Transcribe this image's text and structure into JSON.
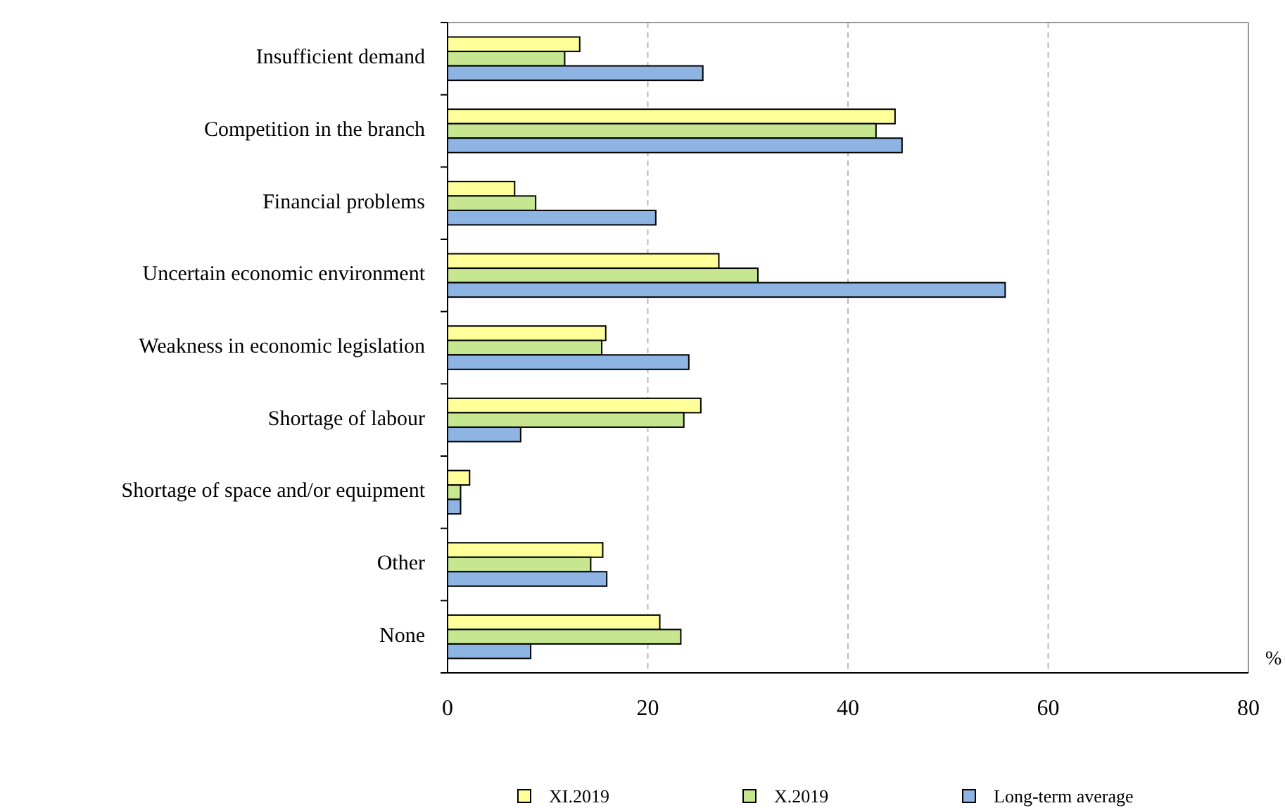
{
  "chart_data": {
    "type": "bar",
    "orientation": "horizontal",
    "xlabel": "%",
    "categories": [
      "Insufficient demand",
      "Competition in the branch",
      "Financial problems",
      "Uncertain economic environment",
      "Weakness in economic legislation",
      "Shortage of labour",
      "Shortage of space and/or equipment",
      "Other",
      "None"
    ],
    "series": [
      {
        "name": "XI.2019",
        "color": "#ffff99",
        "values": [
          13.2,
          44.7,
          6.7,
          27.1,
          15.8,
          25.3,
          2.2,
          15.5,
          21.2
        ]
      },
      {
        "name": "X.2019",
        "color": "#c6e690",
        "values": [
          11.7,
          42.8,
          8.8,
          31.0,
          15.4,
          23.6,
          1.3,
          14.3,
          23.3
        ]
      },
      {
        "name": "Long-term average",
        "color": "#8db4e2",
        "values": [
          25.5,
          45.4,
          20.8,
          55.7,
          24.1,
          7.3,
          1.3,
          15.9,
          8.3
        ]
      }
    ],
    "xlim": [
      0,
      80
    ],
    "xticks": [
      0,
      20,
      40,
      60,
      80
    ],
    "grid": "x",
    "legend": "bottom"
  }
}
